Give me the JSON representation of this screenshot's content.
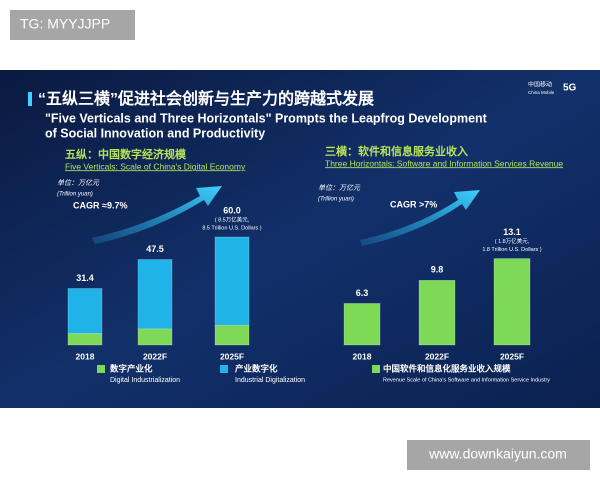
{
  "watermark_top": "TG: MYYJJPP",
  "watermark_bottom": "www.downkaiyun.com",
  "slide": {
    "title_zh": "“五纵三横”促进社会创新与生产力的跨越式发展",
    "title_en_lines": [
      "\"Five Verticals and Three Horizontals\" Prompts the Leapfrog Development",
      "of Social Innovation and Productivity"
    ],
    "logo": [
      "中国移动",
      "China Mobile",
      "5G"
    ]
  },
  "chart_data": [
    {
      "type": "stacked_bar",
      "title": "五纵：中国数字经济规模",
      "subtitle": "Five Verticals: Scale of China's Digital Economy",
      "unit": "单位：万亿元",
      "unit_en": "(Trillion yuan)",
      "annotation": "CAGR ≈9.7%",
      "note": [
        "( 8.5万亿美元,",
        "8.5 Trillion U.S. Dollars )"
      ],
      "categories": [
        "2018",
        "2022F",
        "2025F"
      ],
      "series": [
        {
          "name": "数字产业化",
          "name_en": "Digital Industrialization",
          "color": "#7ed957",
          "values": [
            6.4,
            9.0,
            11.0
          ]
        },
        {
          "name": "产业数字化",
          "name_en": "Industrial Digitalization",
          "color": "#1fb3e8",
          "values": [
            25.0,
            38.5,
            49.0
          ]
        }
      ],
      "totals": [
        31.4,
        47.5,
        60
      ],
      "total_labels": [
        "31.4",
        "47.5",
        "60.0"
      ]
    },
    {
      "type": "bar",
      "title": "三横：软件和信息服务业收入",
      "subtitle": "Three Horizontals: Software and Information Services Revenue",
      "unit": "单位：万亿元",
      "unit_en": "(Trillion yuan)",
      "annotation": "CAGR >7%",
      "note": [
        "( 1.8万亿美元,",
        "1.8 Trillion U.S. Dollars )"
      ],
      "categories": [
        "2018",
        "2022F",
        "2025F"
      ],
      "series": [
        {
          "name": "中国软件和信息化服务业收入规模",
          "name_en": "Revenue Scale of China's Software and Information Service Industry",
          "color": "#7ed957",
          "values": [
            6.3,
            9.8,
            13.1
          ]
        }
      ]
    }
  ]
}
